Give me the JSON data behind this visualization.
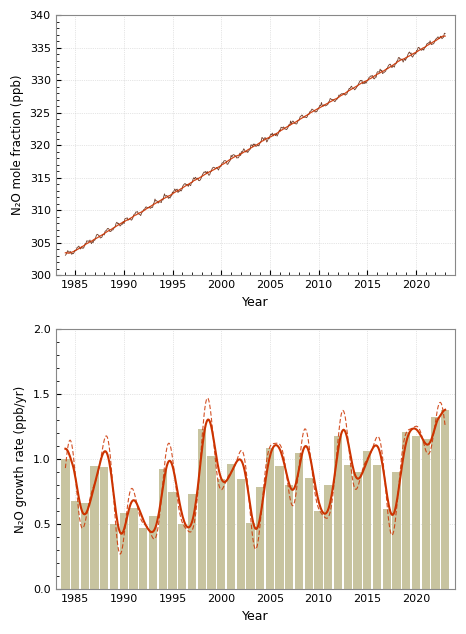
{
  "top_panel": {
    "ylabel": "N₂O mole fraction (ppb)",
    "xlabel": "Year",
    "ylim": [
      300,
      340
    ],
    "xlim": [
      1983,
      2024
    ],
    "yticks": [
      300,
      305,
      310,
      315,
      320,
      325,
      330,
      335,
      340
    ],
    "xticks": [
      1985,
      1990,
      1995,
      2000,
      2005,
      2010,
      2015,
      2020
    ],
    "line_color_dark": "#5a1a00",
    "line_color_red": "#cc3300",
    "grid_color": "#cccccc"
  },
  "bottom_panel": {
    "ylabel": "N₂O growth rate (ppb/yr)",
    "xlabel": "Year",
    "ylim": [
      0.0,
      2.0
    ],
    "xlim": [
      1983,
      2024
    ],
    "yticks": [
      0.0,
      0.5,
      1.0,
      1.5,
      2.0
    ],
    "xticks": [
      1985,
      1990,
      1995,
      2000,
      2005,
      2010,
      2015,
      2020
    ],
    "fill_color": "#c8c4a0",
    "line_color_solid": "#cc3300",
    "line_color_dashed": "#cc3300",
    "grid_color": "#cccccc"
  },
  "figure_bg": "#ffffff",
  "border_color": "#888888"
}
